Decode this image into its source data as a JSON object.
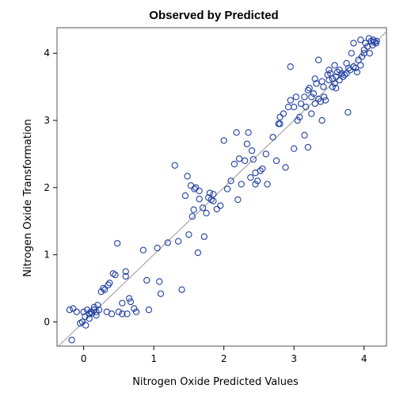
{
  "chart_data": {
    "type": "scatter",
    "title": "Observed by Predicted",
    "xlabel": "Nitrogen Oxide Predicted Values",
    "ylabel": "Nitrogen Oxide Transformation",
    "xlim": [
      -0.38,
      4.32
    ],
    "ylim": [
      -0.36,
      4.38
    ],
    "xticks": [
      0,
      1,
      2,
      3,
      4
    ],
    "yticks": [
      0,
      1,
      2,
      3,
      4
    ],
    "grid": false,
    "reference_line": "y = x",
    "colors": {
      "marker": "#1f3fa0",
      "reference_line": "#a6a6a6",
      "frame": "#555555"
    },
    "points": [
      [
        -0.2,
        0.18
      ],
      [
        -0.15,
        0.2
      ],
      [
        -0.1,
        0.15
      ],
      [
        -0.17,
        -0.27
      ],
      [
        -0.05,
        -0.02
      ],
      [
        -0.02,
        0.0
      ],
      [
        0.02,
        0.08
      ],
      [
        0.0,
        0.15
      ],
      [
        0.05,
        0.18
      ],
      [
        0.03,
        -0.05
      ],
      [
        0.08,
        0.12
      ],
      [
        0.1,
        0.15
      ],
      [
        0.12,
        0.13
      ],
      [
        0.15,
        0.22
      ],
      [
        0.18,
        0.15
      ],
      [
        0.2,
        0.25
      ],
      [
        0.15,
        0.18
      ],
      [
        0.25,
        0.45
      ],
      [
        0.28,
        0.5
      ],
      [
        0.3,
        0.48
      ],
      [
        0.33,
        0.15
      ],
      [
        0.35,
        0.55
      ],
      [
        0.37,
        0.58
      ],
      [
        0.4,
        0.12
      ],
      [
        0.42,
        0.72
      ],
      [
        0.45,
        0.7
      ],
      [
        0.48,
        1.17
      ],
      [
        0.5,
        0.15
      ],
      [
        0.55,
        0.28
      ],
      [
        0.55,
        0.12
      ],
      [
        0.6,
        0.68
      ],
      [
        0.6,
        0.75
      ],
      [
        0.62,
        0.12
      ],
      [
        0.65,
        0.35
      ],
      [
        0.67,
        0.3
      ],
      [
        0.72,
        0.2
      ],
      [
        0.75,
        0.15
      ],
      [
        0.85,
        1.07
      ],
      [
        0.9,
        0.62
      ],
      [
        0.93,
        0.18
      ],
      [
        1.05,
        1.1
      ],
      [
        1.08,
        0.6
      ],
      [
        1.1,
        0.42
      ],
      [
        1.2,
        1.18
      ],
      [
        1.3,
        2.33
      ],
      [
        1.35,
        1.2
      ],
      [
        1.4,
        0.48
      ],
      [
        1.45,
        1.88
      ],
      [
        1.48,
        2.17
      ],
      [
        1.5,
        1.3
      ],
      [
        1.53,
        2.03
      ],
      [
        1.55,
        1.57
      ],
      [
        1.57,
        1.67
      ],
      [
        1.58,
        1.98
      ],
      [
        1.6,
        2.0
      ],
      [
        1.63,
        1.03
      ],
      [
        1.65,
        1.95
      ],
      [
        1.65,
        1.83
      ],
      [
        1.72,
        1.27
      ],
      [
        1.75,
        1.62
      ],
      [
        1.78,
        1.85
      ],
      [
        1.8,
        1.92
      ],
      [
        1.82,
        1.82
      ],
      [
        1.85,
        1.8
      ],
      [
        1.9,
        1.68
      ],
      [
        1.95,
        1.73
      ],
      [
        2.0,
        2.7
      ],
      [
        2.05,
        1.98
      ],
      [
        2.1,
        2.1
      ],
      [
        2.18,
        2.82
      ],
      [
        2.2,
        1.82
      ],
      [
        2.22,
        2.43
      ],
      [
        2.25,
        2.05
      ],
      [
        2.3,
        2.4
      ],
      [
        2.33,
        2.65
      ],
      [
        2.35,
        2.82
      ],
      [
        2.38,
        2.15
      ],
      [
        2.42,
        2.42
      ],
      [
        2.45,
        2.22
      ],
      [
        2.45,
        2.05
      ],
      [
        2.48,
        2.1
      ],
      [
        2.52,
        2.25
      ],
      [
        2.55,
        2.28
      ],
      [
        2.62,
        2.05
      ],
      [
        2.7,
        2.75
      ],
      [
        2.75,
        2.4
      ],
      [
        2.78,
        2.95
      ],
      [
        2.8,
        2.95
      ],
      [
        2.8,
        3.05
      ],
      [
        2.88,
        2.3
      ],
      [
        2.92,
        3.2
      ],
      [
        2.95,
        3.3
      ],
      [
        2.95,
        3.8
      ],
      [
        3.0,
        2.58
      ],
      [
        3.03,
        3.35
      ],
      [
        3.05,
        3.0
      ],
      [
        3.08,
        3.05
      ],
      [
        3.1,
        3.25
      ],
      [
        3.15,
        3.35
      ],
      [
        3.15,
        2.78
      ],
      [
        3.17,
        3.2
      ],
      [
        3.2,
        2.6
      ],
      [
        3.22,
        3.48
      ],
      [
        3.25,
        3.1
      ],
      [
        3.25,
        3.35
      ],
      [
        3.28,
        3.4
      ],
      [
        3.3,
        3.25
      ],
      [
        3.32,
        3.55
      ],
      [
        3.35,
        3.32
      ],
      [
        3.35,
        3.9
      ],
      [
        3.38,
        3.28
      ],
      [
        3.4,
        3.58
      ],
      [
        3.42,
        3.5
      ],
      [
        3.43,
        3.35
      ],
      [
        3.45,
        3.3
      ],
      [
        3.48,
        3.68
      ],
      [
        3.5,
        3.6
      ],
      [
        3.52,
        3.7
      ],
      [
        3.55,
        3.62
      ],
      [
        3.58,
        3.55
      ],
      [
        3.6,
        3.65
      ],
      [
        3.6,
        3.48
      ],
      [
        3.62,
        3.72
      ],
      [
        3.65,
        3.6
      ],
      [
        3.68,
        3.7
      ],
      [
        3.7,
        3.65
      ],
      [
        3.72,
        3.68
      ],
      [
        3.75,
        3.7
      ],
      [
        3.77,
        3.12
      ],
      [
        3.78,
        3.78
      ],
      [
        3.8,
        3.75
      ],
      [
        3.82,
        4.0
      ],
      [
        3.85,
        4.15
      ],
      [
        3.88,
        3.78
      ],
      [
        3.9,
        3.72
      ],
      [
        3.92,
        3.9
      ],
      [
        3.95,
        3.82
      ],
      [
        3.95,
        4.2
      ],
      [
        3.97,
        3.95
      ],
      [
        4.0,
        4.05
      ],
      [
        4.02,
        4.15
      ],
      [
        4.05,
        4.1
      ],
      [
        4.07,
        4.22
      ],
      [
        4.08,
        4.0
      ],
      [
        4.1,
        4.18
      ],
      [
        4.12,
        4.12
      ],
      [
        4.13,
        4.2
      ],
      [
        4.15,
        4.17
      ],
      [
        4.17,
        4.15
      ],
      [
        4.18,
        4.18
      ],
      [
        3.2,
        3.45
      ],
      [
        3.5,
        3.75
      ],
      [
        3.0,
        3.2
      ],
      [
        2.6,
        2.5
      ],
      [
        2.4,
        2.55
      ],
      [
        3.4,
        3.0
      ],
      [
        3.55,
        3.5
      ],
      [
        3.65,
        3.75
      ],
      [
        3.85,
        3.8
      ],
      [
        4.0,
        4.0
      ],
      [
        1.7,
        1.7
      ],
      [
        1.85,
        1.9
      ],
      [
        2.15,
        2.35
      ],
      [
        0.22,
        0.18
      ],
      [
        0.08,
        0.05
      ],
      [
        0.18,
        0.1
      ],
      [
        3.3,
        3.62
      ],
      [
        3.75,
        3.85
      ],
      [
        3.58,
        3.82
      ],
      [
        2.85,
        3.1
      ]
    ]
  }
}
